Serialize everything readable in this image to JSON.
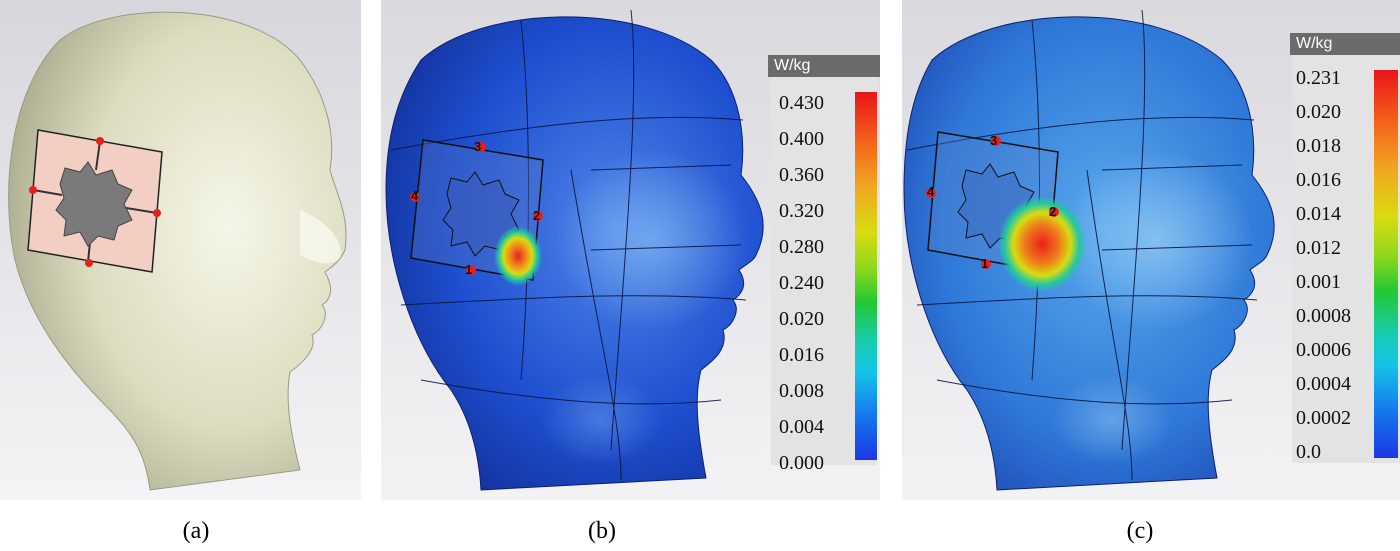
{
  "captions": [
    "(a)",
    "(b)",
    "(c)"
  ],
  "panel_b": {
    "unit": "W/kg",
    "ticks": [
      "0.430",
      "0.400",
      "0.360",
      "0.320",
      "0.280",
      "0.240",
      "0.020",
      "0.016",
      "0.008",
      "0.004",
      "0.000"
    ],
    "ports": [
      "3",
      "4",
      "2",
      "1"
    ]
  },
  "panel_c": {
    "unit": "W/kg",
    "ticks": [
      "0.231",
      "0.020",
      "0.018",
      "0.016",
      "0.014",
      "0.012",
      "0.001",
      "0.0008",
      "0.0006",
      "0.0004",
      "0.0002",
      "0.0"
    ],
    "ports": [
      "3",
      "4",
      "2",
      "1"
    ]
  },
  "colors": {
    "head_a": "#e2e2c8",
    "antenna_fill": "#f2cfc2",
    "patch": "#7a7a7a",
    "sar_base": "#1e4fd0",
    "sar_hot": "#e8201c"
  }
}
